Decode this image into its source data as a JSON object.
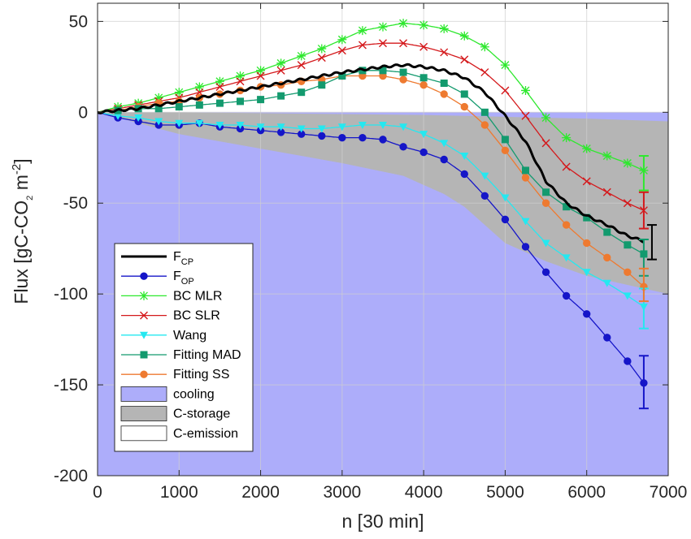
{
  "chart_data": {
    "type": "line",
    "xlabel": "n [30 min]",
    "ylabel": "Flux [gC-CO",
    "ylabel_sub": "2",
    "ylabel_tail": " m",
    "ylabel_sup": "-2",
    "ylabel_close": "]",
    "xlim": [
      0,
      7000
    ],
    "ylim": [
      -200,
      60
    ],
    "xticks": [
      0,
      1000,
      2000,
      3000,
      4000,
      5000,
      6000,
      7000
    ],
    "yticks": [
      50,
      0,
      -50,
      -100,
      -150,
      -200
    ],
    "grid": true,
    "legend_position": "lower-left",
    "series": [
      {
        "name": "F",
        "name_sub": "CP",
        "color": "#000000",
        "marker": "none",
        "width": 3,
        "x": [
          0,
          500,
          1000,
          1500,
          2000,
          2500,
          3000,
          3500,
          3750,
          4000,
          4250,
          4500,
          4750,
          5000,
          5250,
          5500,
          5750,
          6000,
          6250,
          6500,
          6700
        ],
        "y": [
          0,
          2,
          6,
          10,
          14,
          18,
          22,
          25,
          26,
          25,
          23,
          19,
          11,
          -2,
          -16,
          -38,
          -50,
          -57,
          -62,
          -68,
          -71
        ]
      },
      {
        "name": "F",
        "name_sub": "OP",
        "color": "#1515c8",
        "marker": "circle",
        "x": [
          0,
          250,
          500,
          750,
          1000,
          1250,
          1500,
          1750,
          2000,
          2250,
          2500,
          2750,
          3000,
          3250,
          3500,
          3750,
          4000,
          4250,
          4500,
          4750,
          5000,
          5250,
          5500,
          5750,
          6000,
          6250,
          6500,
          6700
        ],
        "y": [
          0,
          -3,
          -5,
          -7,
          -7,
          -6,
          -8,
          -9,
          -10,
          -11,
          -12,
          -13,
          -14,
          -14,
          -15,
          -19,
          -22,
          -26,
          -34,
          -46,
          -59,
          -74,
          -88,
          -101,
          -111,
          -124,
          -137,
          -149
        ]
      },
      {
        "name": "BC MLR",
        "color": "#2ee82e",
        "marker": "star",
        "x": [
          0,
          250,
          500,
          750,
          1000,
          1250,
          1500,
          1750,
          2000,
          2250,
          2500,
          2750,
          3000,
          3250,
          3500,
          3750,
          4000,
          4250,
          4500,
          4750,
          5000,
          5250,
          5500,
          5750,
          6000,
          6250,
          6500,
          6700
        ],
        "y": [
          0,
          3,
          5,
          8,
          11,
          14,
          17,
          20,
          23,
          27,
          31,
          35,
          40,
          45,
          47,
          49,
          48,
          46,
          42,
          36,
          26,
          12,
          -3,
          -14,
          -20,
          -24,
          -28,
          -32
        ]
      },
      {
        "name": "BC SLR",
        "color": "#d4191c",
        "marker": "x",
        "x": [
          0,
          250,
          500,
          750,
          1000,
          1250,
          1500,
          1750,
          2000,
          2250,
          2500,
          2750,
          3000,
          3250,
          3500,
          3750,
          4000,
          4250,
          4500,
          4750,
          5000,
          5250,
          5500,
          5750,
          6000,
          6250,
          6500,
          6700
        ],
        "y": [
          0,
          2,
          4,
          6,
          8,
          11,
          14,
          17,
          20,
          23,
          26,
          30,
          34,
          37,
          38,
          38,
          36,
          33,
          29,
          22,
          12,
          -2,
          -17,
          -30,
          -38,
          -44,
          -50,
          -54
        ]
      },
      {
        "name": "Wang",
        "color": "#25e8f0",
        "marker": "triangle",
        "x": [
          0,
          250,
          500,
          750,
          1000,
          1250,
          1500,
          1750,
          2000,
          2250,
          2500,
          2750,
          3000,
          3250,
          3500,
          3750,
          4000,
          4250,
          4500,
          4750,
          5000,
          5250,
          5500,
          5750,
          6000,
          6250,
          6500,
          6700
        ],
        "y": [
          0,
          -2,
          -3,
          -5,
          -6,
          -6,
          -7,
          -7,
          -8,
          -8,
          -9,
          -9,
          -8,
          -7,
          -7,
          -8,
          -12,
          -17,
          -24,
          -35,
          -47,
          -60,
          -72,
          -80,
          -88,
          -94,
          -101,
          -107
        ]
      },
      {
        "name": "Fitting MAD",
        "color": "#139a6e",
        "marker": "square",
        "x": [
          0,
          250,
          500,
          750,
          1000,
          1250,
          1500,
          1750,
          2000,
          2250,
          2500,
          2750,
          3000,
          3250,
          3500,
          3750,
          4000,
          4250,
          4500,
          4750,
          5000,
          5250,
          5500,
          5750,
          6000,
          6250,
          6500,
          6700
        ],
        "y": [
          0,
          1,
          2,
          2,
          3,
          4,
          5,
          6,
          7,
          9,
          11,
          15,
          20,
          23,
          23,
          22,
          19,
          16,
          10,
          0,
          -15,
          -32,
          -44,
          -52,
          -58,
          -66,
          -73,
          -78
        ]
      },
      {
        "name": "Fitting SS",
        "color": "#ee7a30",
        "marker": "circle",
        "x": [
          0,
          250,
          500,
          750,
          1000,
          1250,
          1500,
          1750,
          2000,
          2250,
          2500,
          2750,
          3000,
          3250,
          3500,
          3750,
          4000,
          4250,
          4500,
          4750,
          5000,
          5250,
          5500,
          5750,
          6000,
          6250,
          6500,
          6700
        ],
        "y": [
          0,
          1,
          3,
          5,
          6,
          8,
          10,
          12,
          14,
          15,
          17,
          18,
          20,
          20,
          20,
          18,
          15,
          10,
          3,
          -7,
          -21,
          -36,
          -50,
          -62,
          -72,
          -80,
          -88,
          -96
        ]
      }
    ],
    "error_bars": [
      {
        "series": "F_CP",
        "x": 6800,
        "y": -71,
        "low": -81,
        "high": -62,
        "color": "#000000"
      },
      {
        "series": "F_OP",
        "x": 6700,
        "y": -149,
        "low": -163,
        "high": -134,
        "color": "#1515c8"
      },
      {
        "series": "BC MLR",
        "x": 6700,
        "y": -32,
        "low": -43,
        "high": -24,
        "color": "#2ee82e"
      },
      {
        "series": "BC SLR",
        "x": 6700,
        "y": -54,
        "low": -64,
        "high": -44,
        "color": "#d4191c"
      },
      {
        "series": "Wang",
        "x": 6700,
        "y": -107,
        "low": -119,
        "high": -97,
        "color": "#25e8f0"
      },
      {
        "series": "Fitting MAD",
        "x": 6700,
        "y": -78,
        "low": -90,
        "high": -70,
        "color": "#139a6e"
      },
      {
        "series": "Fitting SS",
        "x": 6700,
        "y": -96,
        "low": -104,
        "high": -86,
        "color": "#ee7a30"
      }
    ],
    "areas": [
      {
        "name": "cooling",
        "color": "#adadfa"
      },
      {
        "name": "C-storage",
        "color": "#b5b5b5"
      },
      {
        "name": "C-emission",
        "color": "#ffffff"
      }
    ],
    "storage_area_lower": {
      "x": [
        0,
        1000,
        2000,
        3000,
        3750,
        4000,
        4250,
        4500,
        4750,
        5000,
        5500,
        6000,
        6500,
        7000
      ],
      "y": [
        0,
        -12,
        -20,
        -28,
        -35,
        -40,
        -45,
        -52,
        -62,
        -72,
        -82,
        -90,
        -95,
        -100
      ]
    },
    "storage_area_upper": {
      "x": [
        0,
        1000,
        2000,
        3000,
        4000,
        5000,
        6000,
        7000
      ],
      "y": [
        0,
        0,
        -0.5,
        -1,
        -1.5,
        -2.5,
        -3.5,
        -5
      ]
    }
  }
}
